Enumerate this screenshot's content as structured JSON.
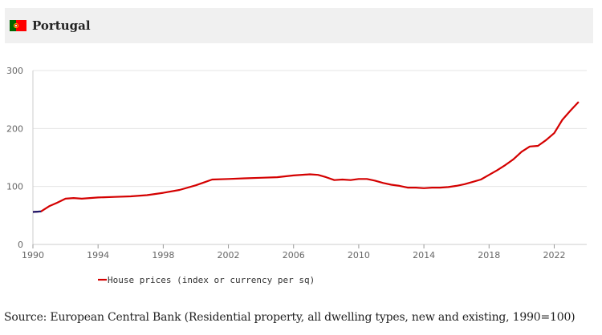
{
  "header": {
    "country": "Portugal",
    "flag_icon": "portugal-flag-icon"
  },
  "source": "Source: European Central Bank (Residential property, all dwelling types, new and existing, 1990=100)",
  "colors": {
    "series_line": "#d40000",
    "series_start": "#1a1a6e",
    "header_bg": "#f0f0f0",
    "grid": "#e5e5e5",
    "axis": "#cccccc"
  },
  "chart_data": {
    "type": "line",
    "title": "",
    "xlabel": "",
    "ylabel": "",
    "xlim": [
      1990,
      2023.8
    ],
    "ylim": [
      0,
      300
    ],
    "x_ticks": [
      1990,
      1994,
      1998,
      2002,
      2006,
      2010,
      2014,
      2018,
      2022
    ],
    "y_ticks": [
      0,
      100,
      200,
      300
    ],
    "grid": "horizontal",
    "legend": "bottom-left",
    "series": [
      {
        "name": "House prices (index or currency per sq)",
        "x": [
          1990,
          1990.5,
          1991,
          1991.5,
          1992,
          1992.5,
          1993,
          1994,
          1995,
          1996,
          1997,
          1998,
          1999,
          2000,
          2001,
          2002,
          2003,
          2004,
          2005,
          2006,
          2007,
          2007.5,
          2008,
          2008.5,
          2009,
          2009.5,
          2010,
          2010.5,
          2011,
          2011.5,
          2012,
          2012.5,
          2013,
          2013.5,
          2014,
          2014.5,
          2015,
          2015.5,
          2016,
          2016.5,
          2017,
          2017.5,
          2018,
          2018.5,
          2019,
          2019.5,
          2020,
          2020.5,
          2021,
          2021.5,
          2022,
          2022.5,
          2023,
          2023.5
        ],
        "values": [
          56,
          57,
          66,
          72,
          79,
          80,
          79,
          81,
          82,
          83,
          85,
          89,
          94,
          102,
          112,
          113,
          114,
          115,
          116,
          119,
          121,
          120,
          116,
          111,
          112,
          111,
          113,
          113,
          110,
          106,
          103,
          101,
          98,
          98,
          97,
          98,
          98,
          99,
          101,
          104,
          108,
          112,
          120,
          128,
          137,
          147,
          160,
          169,
          170,
          180,
          192,
          215,
          231,
          246
        ]
      }
    ]
  }
}
